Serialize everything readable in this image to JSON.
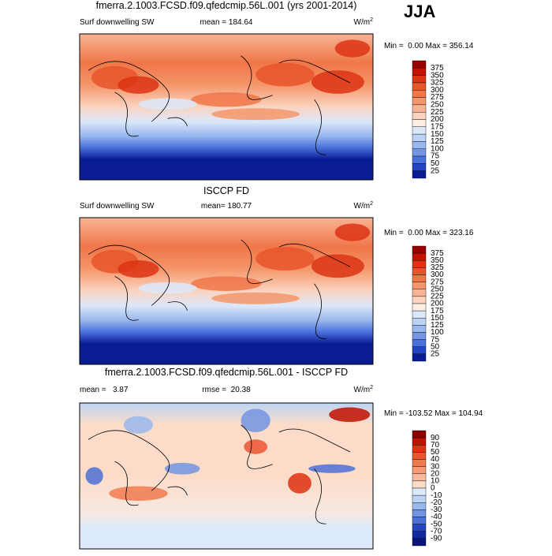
{
  "season": "JJA",
  "panels": [
    {
      "title": "fmerra.2.1003.FCSD.f09.qfedcmip.56L.001 (yrs 2001-2014)",
      "left_label": "Surf downwelling SW",
      "stat": "mean = 184.64",
      "units": "W/m",
      "units_exponent": "2",
      "range": "Min =  0.00 Max = 356.14",
      "levels": [
        375,
        350,
        325,
        300,
        275,
        250,
        225,
        200,
        175,
        150,
        125,
        100,
        75,
        50,
        25
      ],
      "colors": [
        "#990000",
        "#c41200",
        "#dc3414",
        "#e8552c",
        "#f07648",
        "#f5966a",
        "#f8b494",
        "#fbd3bf",
        "#fdeee4",
        "#dbe8f9",
        "#bbd3f4",
        "#98b7ee",
        "#7395e6",
        "#4a70dc",
        "#2444c6",
        "#0a1c94"
      ]
    },
    {
      "title": "ISCCP FD",
      "left_label": "Surf downwelling SW",
      "stat": "mean= 180.77",
      "units": "W/m",
      "units_exponent": "2",
      "range": "Min =  0.00 Max = 323.16",
      "levels": [
        375,
        350,
        325,
        300,
        275,
        250,
        225,
        200,
        175,
        150,
        125,
        100,
        75,
        50,
        25
      ],
      "colors": [
        "#990000",
        "#c41200",
        "#dc3414",
        "#e8552c",
        "#f07648",
        "#f5966a",
        "#f8b494",
        "#fbd3bf",
        "#fdeee4",
        "#dbe8f9",
        "#bbd3f4",
        "#98b7ee",
        "#7395e6",
        "#4a70dc",
        "#2444c6",
        "#0a1c94"
      ]
    },
    {
      "title": "fmerra.2.1003.FCSD.f09.qfedcmip.56L.001 - ISCCP FD",
      "left_label": "mean =   3.87",
      "stat": "rmse =  20.38",
      "units": "W/m",
      "units_exponent": "2",
      "range": "Min = -103.52 Max = 104.94",
      "levels": [
        90,
        70,
        50,
        40,
        30,
        20,
        10,
        0,
        -10,
        -20,
        -30,
        -40,
        -50,
        -70,
        -90
      ],
      "colors": [
        "#8b0000",
        "#c01000",
        "#de3010",
        "#ea5530",
        "#f07a50",
        "#f59a74",
        "#f8b99c",
        "#fcdcc8",
        "#dceafb",
        "#bcd5f4",
        "#99b8ec",
        "#7394e2",
        "#4c70d6",
        "#2646c0",
        "#1228a0",
        "#0a1478"
      ]
    }
  ]
}
